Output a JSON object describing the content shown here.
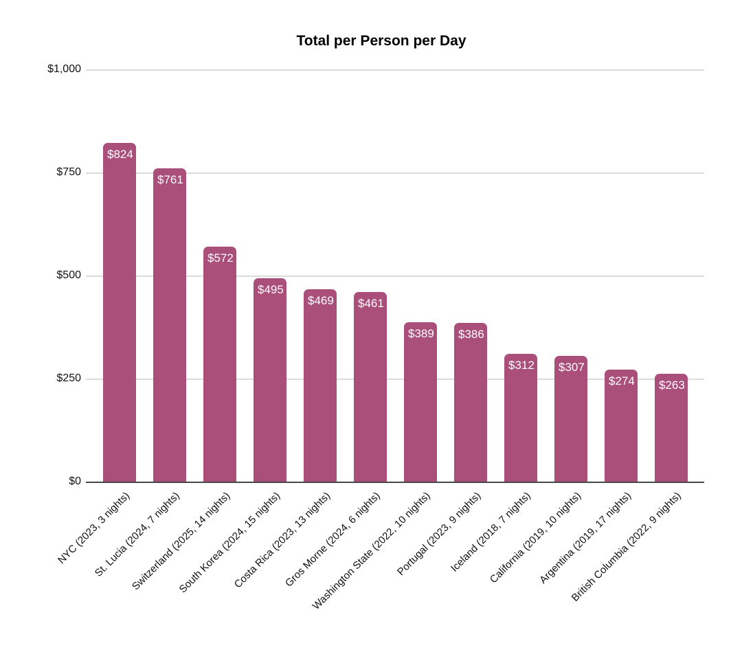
{
  "chart_data": {
    "type": "bar",
    "title": "Total per Person per Day",
    "categories": [
      "NYC (2023, 3 nights)",
      "St. Lucia (2024, 7 nights)",
      "Switzerland (2025, 14 nights)",
      "South Korea (2024, 15 nights)",
      "Costa Rica (2023, 13 nights)",
      "Gros Morne (2024, 6 nights)",
      "Washington State (2022, 10 nights)",
      "Portugal (2023, 9 nights)",
      "Iceland (2018, 7 nights)",
      "California (2019, 10 nights)",
      "Argentina (2019, 17 nights)",
      "British Columbia (2022, 9 nights)"
    ],
    "values": [
      824,
      761,
      572,
      495,
      469,
      461,
      389,
      386,
      312,
      307,
      274,
      263
    ],
    "value_labels": [
      "$824",
      "$761",
      "$572",
      "$495",
      "$469",
      "$461",
      "$389",
      "$386",
      "$312",
      "$307",
      "$274",
      "$263"
    ],
    "xlabel": "",
    "ylabel": "",
    "ylim": [
      0,
      1000
    ],
    "ytick_values": [
      0,
      250,
      500,
      750,
      1000
    ],
    "ytick_labels": [
      "$0",
      "$250",
      "$500",
      "$750",
      "$1,000"
    ],
    "grid": true,
    "legend": "none",
    "x_label_rotation_deg": -45,
    "bar_color": "#aa4e7a",
    "bar_label_color": "#ffffff",
    "axis_text_color": "#111111",
    "gridline_color": "#dcdcdc",
    "axis_line_color": "#484848",
    "background_color": "#ffffff"
  }
}
